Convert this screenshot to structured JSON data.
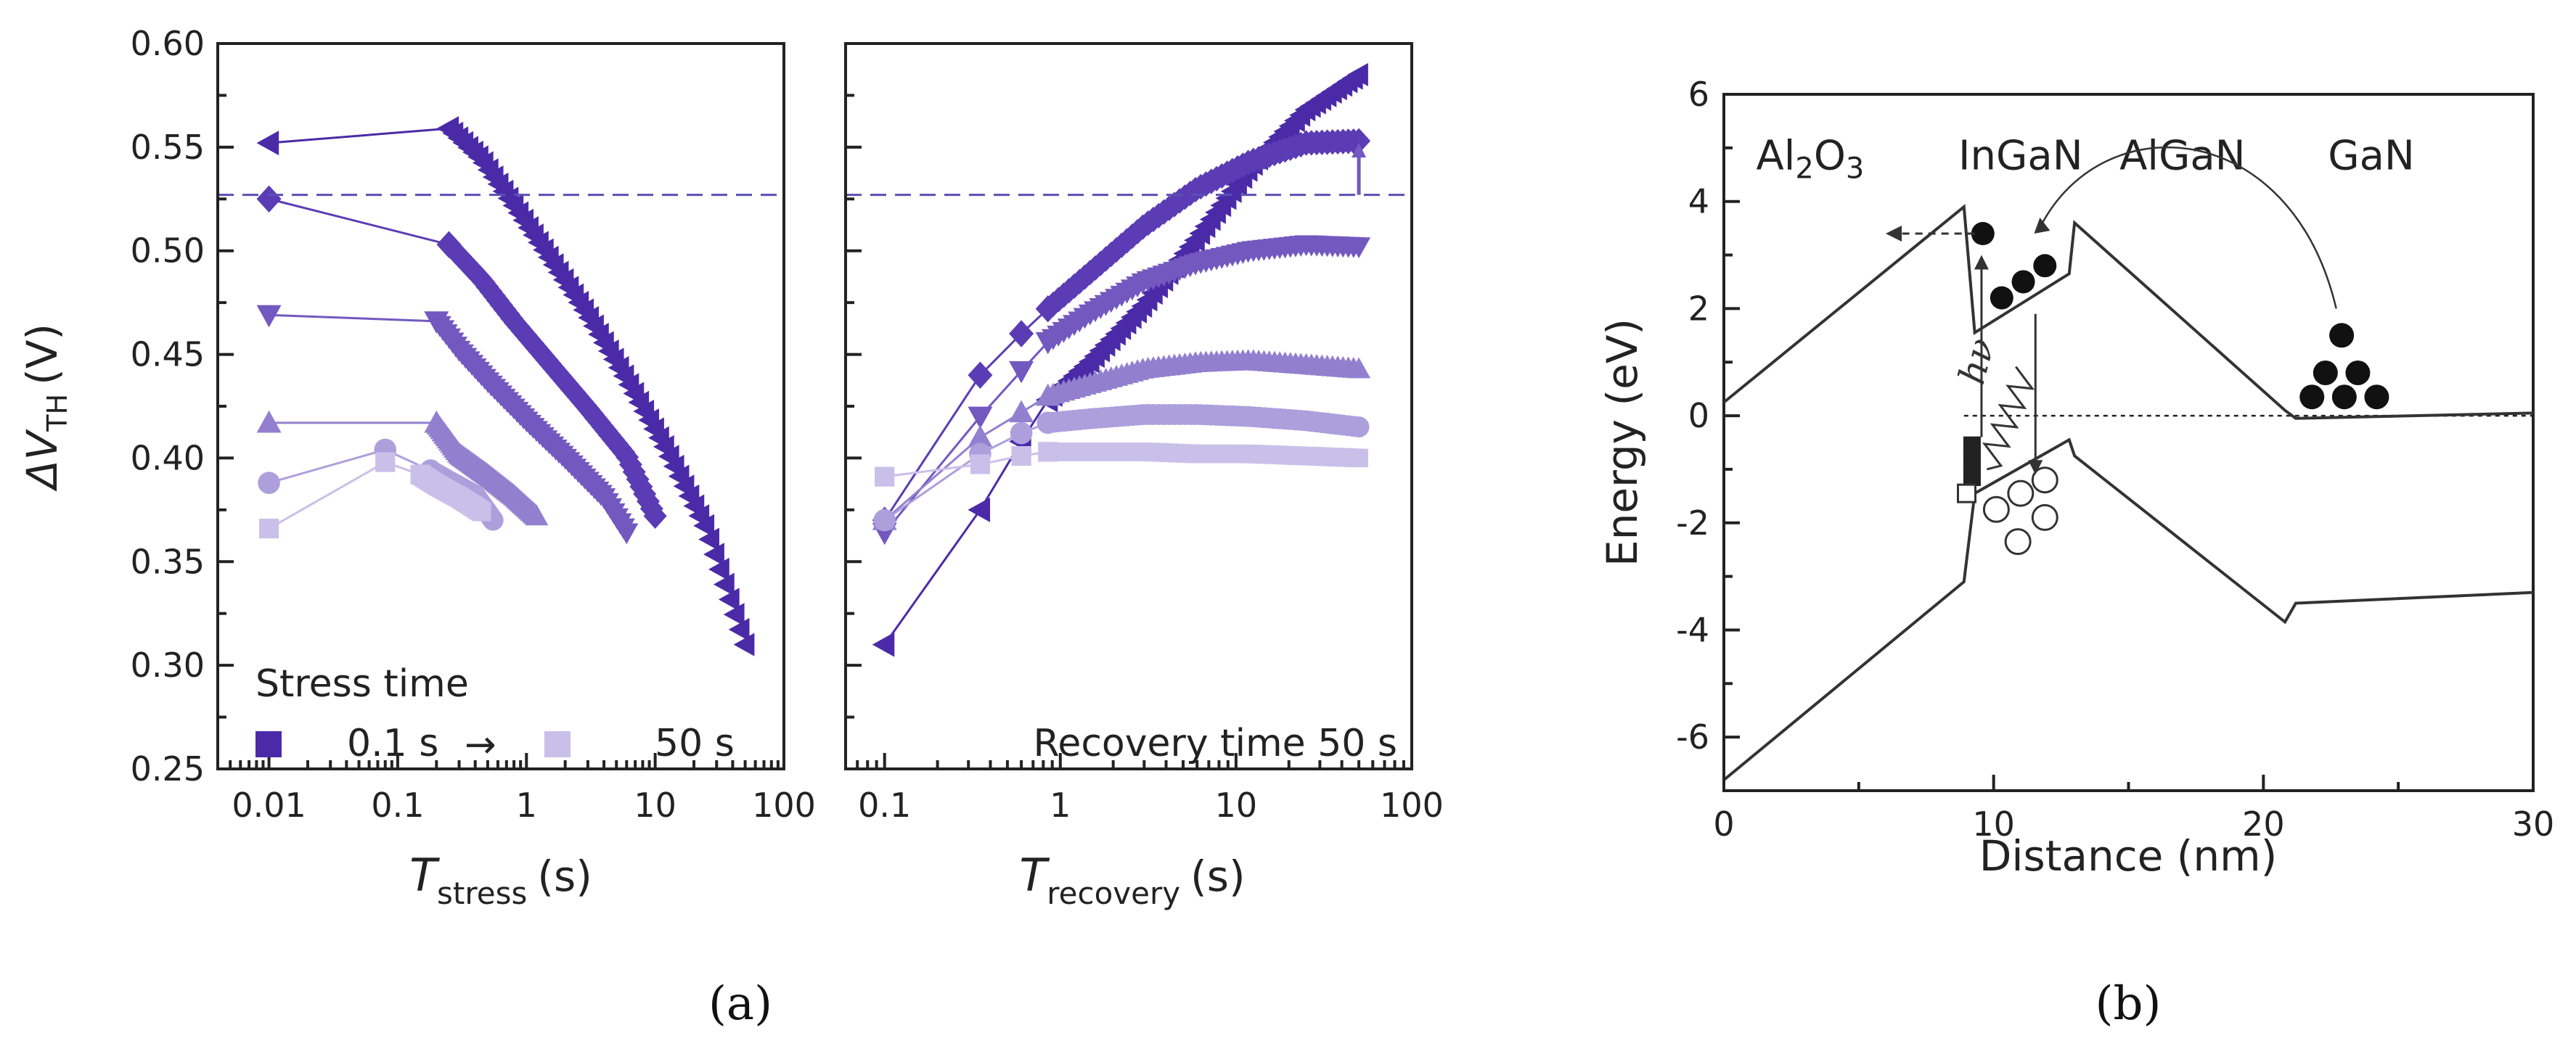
{
  "panel_labels": {
    "a": "(a)",
    "b": "(b)"
  },
  "colors": {
    "series": [
      "#4b2aa8",
      "#5b3cb4",
      "#7358c0",
      "#9280cf",
      "#ad9fdc",
      "#c9c0ea"
    ],
    "ref_line": "#5a4fb5",
    "band": "#3a3a3a"
  },
  "chart_data": [
    {
      "type": "scatter",
      "id": "stress",
      "xscale": "log",
      "xlim": [
        0.004,
        100
      ],
      "ylim": [
        0.25,
        0.6
      ],
      "ylabel_main": "ΔV",
      "ylabel_sub": "TH",
      "ylabel_unit": "(V)",
      "xlabel_main": "T",
      "xlabel_sub": "stress",
      "xlabel_unit": "(s)",
      "xticks": [
        "0.01",
        "0.1",
        "1",
        "10",
        "100"
      ],
      "xtick_values": [
        0.01,
        0.1,
        1,
        10,
        100
      ],
      "yticks": [
        "0.25",
        "0.30",
        "0.35",
        "0.40",
        "0.45",
        "0.50",
        "0.55",
        "0.60"
      ],
      "ytick_values": [
        0.25,
        0.3,
        0.35,
        0.4,
        0.45,
        0.5,
        0.55,
        0.6
      ],
      "series": [
        {
          "marker": "triangle-left",
          "sparse": [
            [
              0.01,
              0.552
            ],
            [
              0.25,
              0.559
            ]
          ],
          "dense": [
            [
              0.25,
              0.559
            ],
            [
              0.45,
              0.544
            ],
            [
              0.8,
              0.522
            ],
            [
              1.5,
              0.497
            ],
            [
              3,
              0.469
            ],
            [
              6,
              0.438
            ],
            [
              12,
              0.405
            ],
            [
              25,
              0.366
            ],
            [
              50,
              0.31
            ]
          ]
        },
        {
          "marker": "diamond",
          "sparse": [
            [
              0.01,
              0.525
            ],
            [
              0.25,
              0.503
            ]
          ],
          "dense": [
            [
              0.25,
              0.503
            ],
            [
              0.45,
              0.486
            ],
            [
              0.8,
              0.466
            ],
            [
              1.5,
              0.446
            ],
            [
              3,
              0.424
            ],
            [
              6,
              0.401
            ],
            [
              10,
              0.372
            ]
          ]
        },
        {
          "marker": "triangle-down",
          "sparse": [
            [
              0.01,
              0.469
            ],
            [
              0.2,
              0.466
            ]
          ],
          "dense": [
            [
              0.2,
              0.466
            ],
            [
              0.3,
              0.452
            ],
            [
              0.5,
              0.437
            ],
            [
              1,
              0.418
            ],
            [
              2,
              0.4
            ],
            [
              4,
              0.381
            ],
            [
              6,
              0.364
            ]
          ]
        },
        {
          "marker": "triangle-up",
          "sparse": [
            [
              0.01,
              0.417
            ],
            [
              0.2,
              0.417
            ]
          ],
          "dense": [
            [
              0.2,
              0.417
            ],
            [
              0.3,
              0.402
            ],
            [
              0.5,
              0.392
            ],
            [
              0.8,
              0.382
            ],
            [
              1.2,
              0.372
            ]
          ]
        },
        {
          "marker": "circle",
          "sparse": [
            [
              0.01,
              0.388
            ],
            [
              0.08,
              0.404
            ],
            [
              0.18,
              0.394
            ]
          ],
          "dense": [
            [
              0.18,
              0.394
            ],
            [
              0.25,
              0.389
            ],
            [
              0.4,
              0.382
            ],
            [
              0.55,
              0.37
            ]
          ]
        },
        {
          "marker": "square",
          "sparse": [
            [
              0.01,
              0.366
            ],
            [
              0.08,
              0.398
            ],
            [
              0.15,
              0.392
            ]
          ],
          "dense": [
            [
              0.15,
              0.392
            ],
            [
              0.2,
              0.387
            ],
            [
              0.3,
              0.381
            ],
            [
              0.45,
              0.374
            ]
          ]
        }
      ],
      "ref_line_y": 0.527,
      "legend": {
        "title": "Stress time",
        "from": "0.1 s",
        "to": "50 s",
        "arrow": "→"
      }
    },
    {
      "type": "scatter",
      "id": "recovery",
      "xscale": "log",
      "xlim": [
        0.06,
        100
      ],
      "ylim": [
        0.25,
        0.6
      ],
      "xlabel_main": "T",
      "xlabel_sub": "recovery",
      "xlabel_unit": "(s)",
      "xticks": [
        "0.1",
        "1",
        "10",
        "100"
      ],
      "xtick_values": [
        0.1,
        1,
        10,
        100
      ],
      "series": [
        {
          "marker": "triangle-left",
          "sparse": [
            [
              0.1,
              0.31
            ],
            [
              0.35,
              0.375
            ],
            [
              0.6,
              0.408
            ],
            [
              0.85,
              0.428
            ]
          ],
          "dense": [
            [
              0.85,
              0.428
            ],
            [
              1.5,
              0.447
            ],
            [
              3,
              0.474
            ],
            [
              6,
              0.506
            ],
            [
              12,
              0.54
            ],
            [
              25,
              0.568
            ],
            [
              50,
              0.585
            ]
          ]
        },
        {
          "marker": "diamond",
          "sparse": [
            [
              0.1,
              0.37
            ],
            [
              0.35,
              0.44
            ],
            [
              0.6,
              0.46
            ],
            [
              0.85,
              0.472
            ]
          ],
          "dense": [
            [
              0.85,
              0.472
            ],
            [
              1.5,
              0.49
            ],
            [
              3,
              0.512
            ],
            [
              6,
              0.53
            ],
            [
              12,
              0.543
            ],
            [
              25,
              0.552
            ],
            [
              50,
              0.553
            ]
          ]
        },
        {
          "marker": "triangle-down",
          "sparse": [
            [
              0.1,
              0.364
            ],
            [
              0.35,
              0.42
            ],
            [
              0.6,
              0.442
            ],
            [
              0.85,
              0.456
            ]
          ],
          "dense": [
            [
              0.85,
              0.456
            ],
            [
              1.5,
              0.47
            ],
            [
              3,
              0.485
            ],
            [
              6,
              0.494
            ],
            [
              12,
              0.5
            ],
            [
              25,
              0.503
            ],
            [
              50,
              0.502
            ]
          ]
        },
        {
          "marker": "triangle-up",
          "sparse": [
            [
              0.1,
              0.37
            ],
            [
              0.35,
              0.41
            ],
            [
              0.6,
              0.422
            ],
            [
              0.85,
              0.43
            ]
          ],
          "dense": [
            [
              0.85,
              0.43
            ],
            [
              1.5,
              0.436
            ],
            [
              3,
              0.443
            ],
            [
              6,
              0.446
            ],
            [
              12,
              0.447
            ],
            [
              25,
              0.445
            ],
            [
              50,
              0.443
            ]
          ]
        },
        {
          "marker": "circle",
          "sparse": [
            [
              0.1,
              0.37
            ],
            [
              0.35,
              0.402
            ],
            [
              0.6,
              0.412
            ],
            [
              0.85,
              0.417
            ]
          ],
          "dense": [
            [
              0.85,
              0.417
            ],
            [
              1.5,
              0.419
            ],
            [
              3,
              0.421
            ],
            [
              6,
              0.421
            ],
            [
              12,
              0.42
            ],
            [
              25,
              0.418
            ],
            [
              50,
              0.415
            ]
          ]
        },
        {
          "marker": "square",
          "sparse": [
            [
              0.1,
              0.391
            ],
            [
              0.35,
              0.397
            ],
            [
              0.6,
              0.401
            ],
            [
              0.85,
              0.403
            ]
          ],
          "dense": [
            [
              0.85,
              0.403
            ],
            [
              1.5,
              0.403
            ],
            [
              3,
              0.403
            ],
            [
              6,
              0.402
            ],
            [
              12,
              0.402
            ],
            [
              25,
              0.401
            ],
            [
              50,
              0.4
            ]
          ]
        }
      ],
      "ref_line_y": 0.527,
      "annotation": "Recovery time 50 s"
    },
    {
      "type": "line",
      "id": "band-diagram",
      "xlim": [
        0,
        30
      ],
      "ylim": [
        -7,
        6
      ],
      "xlabel": "Distance (nm)",
      "ylabel": "Energy (eV)",
      "xticks": [
        "0",
        "10",
        "20",
        "30"
      ],
      "xtick_values": [
        0,
        10,
        20,
        30
      ],
      "yticks": [
        "-6",
        "-4",
        "-2",
        "0",
        "2",
        "4",
        "6"
      ],
      "ytick_values": [
        -6,
        -4,
        -2,
        0,
        2,
        4,
        6
      ],
      "conduction_band": [
        [
          0,
          0.25
        ],
        [
          8.9,
          3.9
        ],
        [
          9.3,
          1.55
        ],
        [
          12.8,
          2.65
        ],
        [
          13.0,
          3.6
        ],
        [
          20.8,
          0.1
        ],
        [
          21.2,
          -0.05
        ],
        [
          30,
          0.05
        ]
      ],
      "valence_band": [
        [
          0,
          -6.8
        ],
        [
          8.9,
          -3.1
        ],
        [
          9.3,
          -1.45
        ],
        [
          12.8,
          -0.45
        ],
        [
          13.0,
          -0.75
        ],
        [
          20.8,
          -3.85
        ],
        [
          21.2,
          -3.5
        ],
        [
          30,
          -3.3
        ]
      ],
      "fermi_level": 0,
      "layers": [
        {
          "label_main": "Al",
          "label_sub1": "2",
          "label_mid": "O",
          "label_sub2": "3",
          "x": 3.2
        },
        {
          "label": "InGaN",
          "x": 11.0
        },
        {
          "label": "AlGaN",
          "x": 17.0
        },
        {
          "label": "GaN",
          "x": 24.0
        }
      ],
      "photon_label": "hν",
      "electrons_well": [
        [
          9.6,
          3.4
        ],
        [
          10.3,
          2.2
        ],
        [
          11.1,
          2.5
        ],
        [
          11.9,
          2.8
        ]
      ],
      "electrons_gan": [
        [
          22.3,
          0.8
        ],
        [
          23.5,
          0.8
        ],
        [
          22.9,
          1.5
        ],
        [
          21.8,
          0.35
        ],
        [
          23.0,
          0.35
        ],
        [
          24.2,
          0.35
        ]
      ],
      "holes": [
        [
          10.1,
          -1.75
        ],
        [
          11.0,
          -1.45
        ],
        [
          11.9,
          -1.2
        ],
        [
          10.9,
          -2.35
        ],
        [
          11.9,
          -1.9
        ]
      ],
      "traps_filled": [
        [
          9.2,
          -0.55
        ],
        [
          9.2,
          -0.85
        ],
        [
          9.2,
          -1.15
        ]
      ],
      "trap_open": [
        9.0,
        -1.45
      ]
    }
  ]
}
